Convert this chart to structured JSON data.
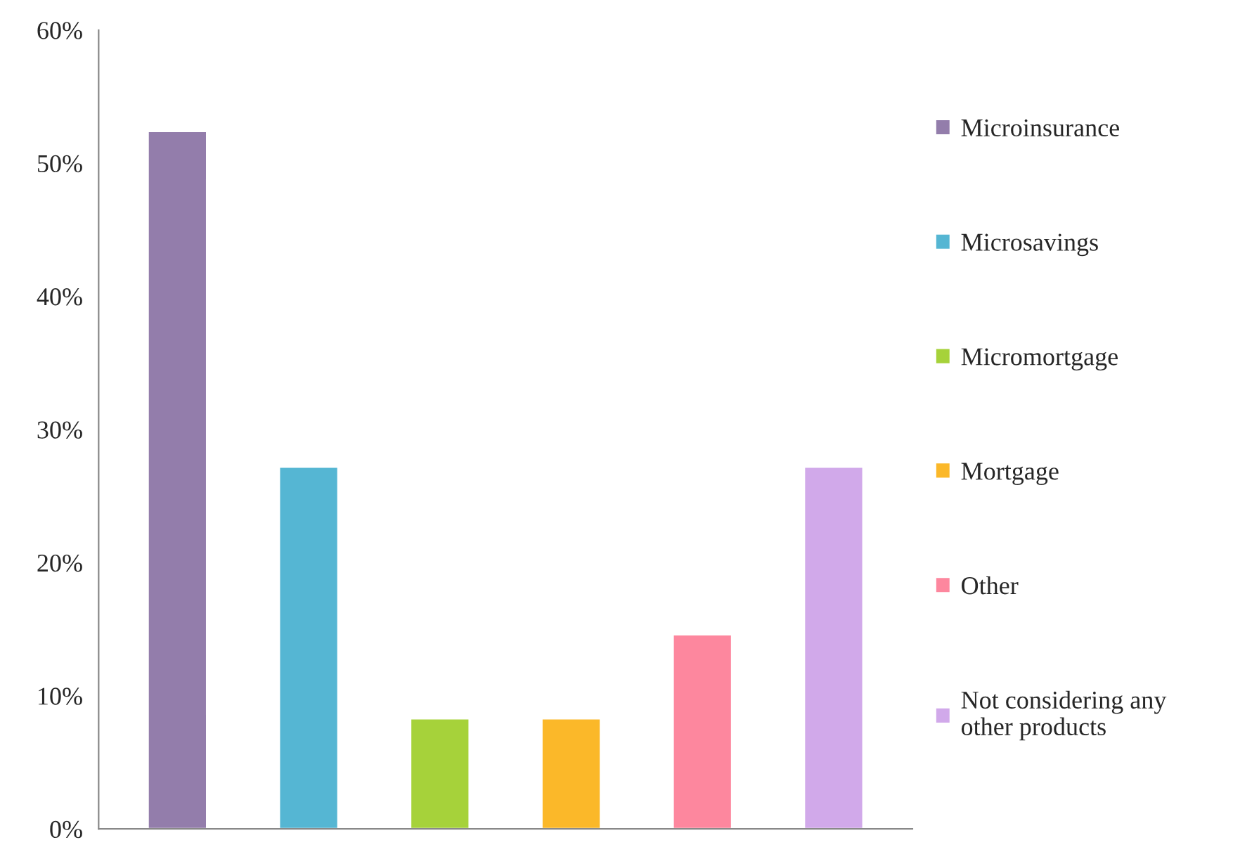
{
  "chart_data": {
    "type": "bar",
    "categories": [
      null,
      null,
      null,
      null,
      null,
      null
    ],
    "series": [
      {
        "name": "Microinsurance",
        "color": "#937dab",
        "values": [
          52.4,
          null,
          null,
          null,
          null,
          null
        ]
      },
      {
        "name": "Microsavings",
        "color": "#55b6d3",
        "values": [
          null,
          27.2,
          null,
          null,
          null,
          null
        ]
      },
      {
        "name": "Micromortgage",
        "color": "#a6d23a",
        "values": [
          null,
          null,
          8.3,
          null,
          null,
          null
        ]
      },
      {
        "name": "Mortgage",
        "color": "#fbb829",
        "values": [
          null,
          null,
          null,
          8.3,
          null,
          null
        ]
      },
      {
        "name": "Other",
        "color": "#fd879e",
        "values": [
          null,
          null,
          null,
          null,
          14.6,
          null
        ]
      },
      {
        "name": "Not considering any other products",
        "color": "#d1a9ea",
        "values": [
          null,
          null,
          null,
          null,
          null,
          27.2
        ]
      }
    ],
    "ylim": [
      0,
      60
    ],
    "yticks": [
      {
        "value": 0,
        "label": "0%"
      },
      {
        "value": 10,
        "label": "10%"
      },
      {
        "value": 20,
        "label": "20%"
      },
      {
        "value": 30,
        "label": "30%"
      },
      {
        "value": 40,
        "label": "40%"
      },
      {
        "value": 50,
        "label": "50%"
      },
      {
        "value": 60,
        "label": "60%"
      }
    ],
    "tick_labels": "y",
    "grid": false,
    "legend": "right"
  }
}
